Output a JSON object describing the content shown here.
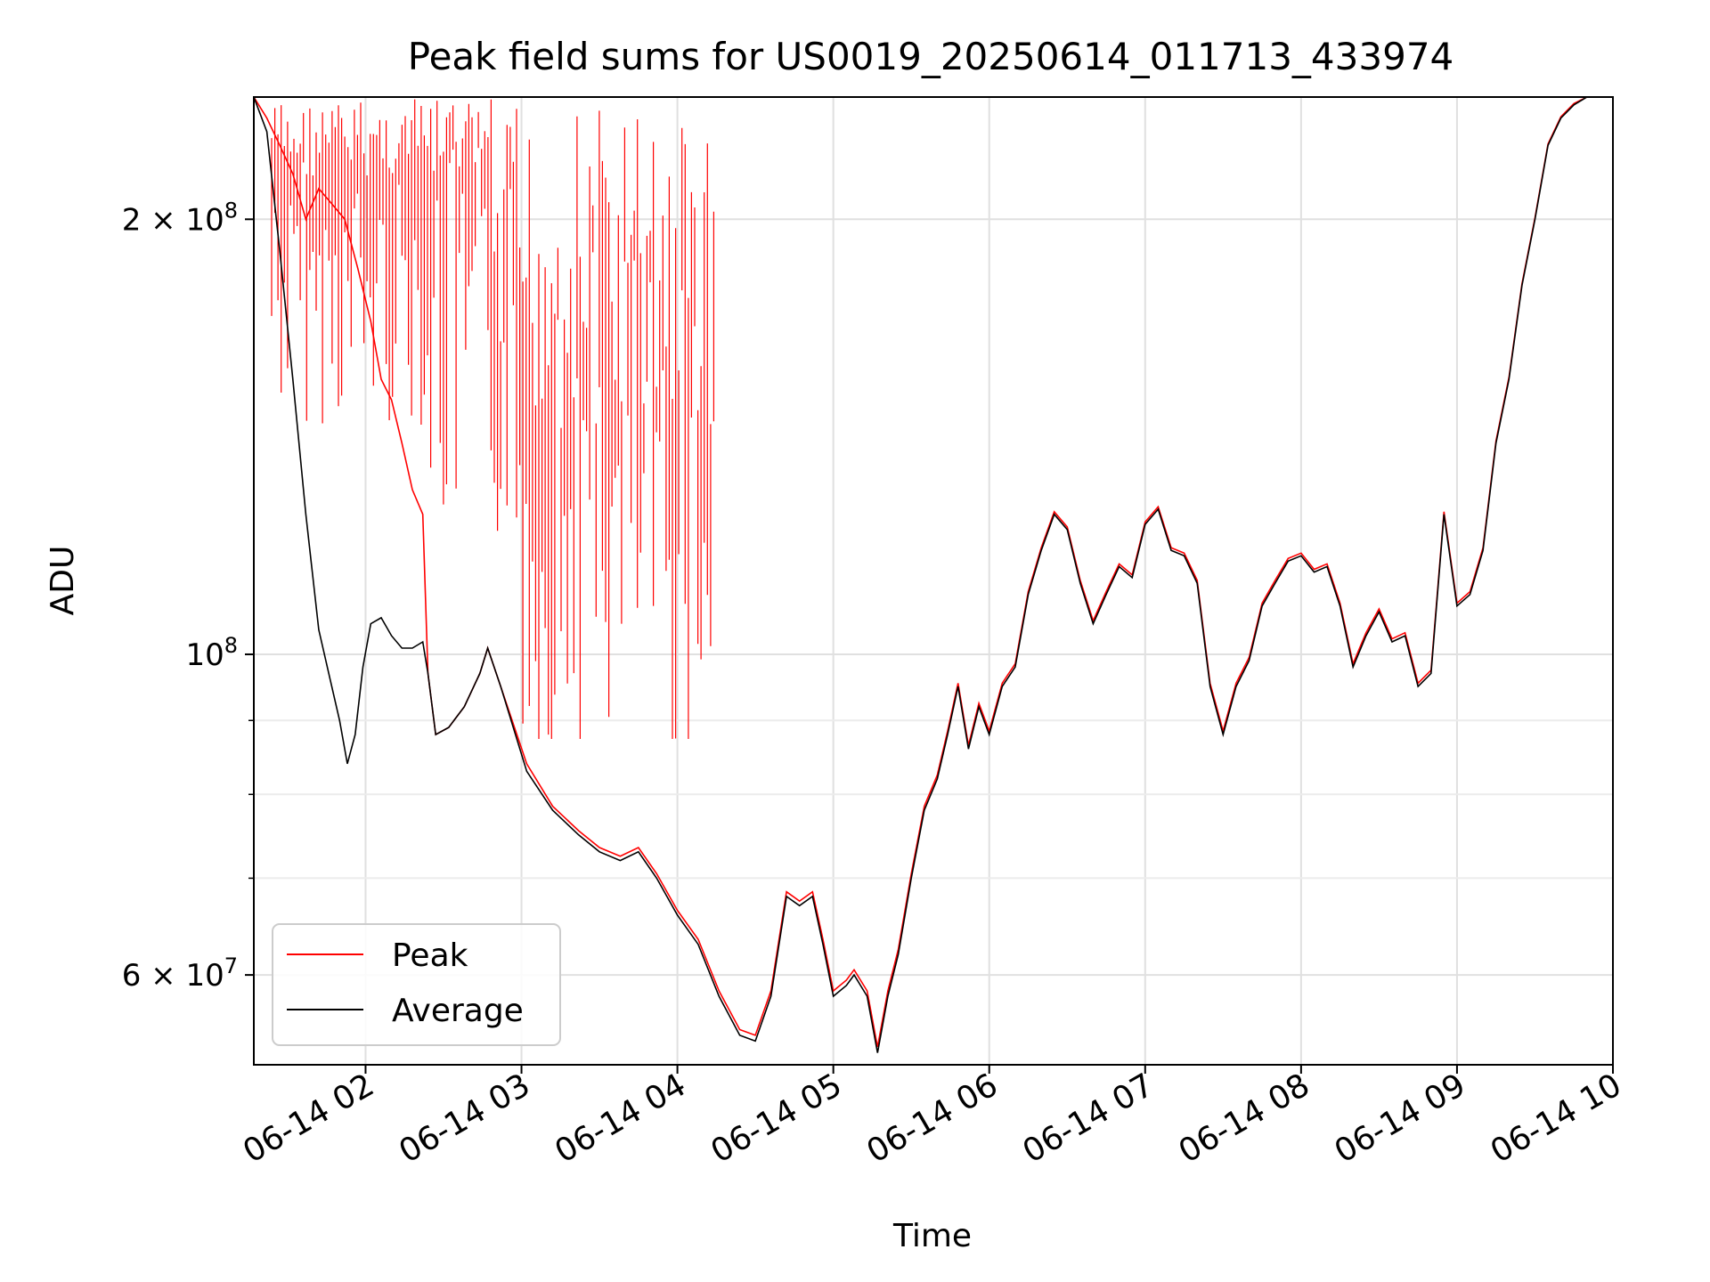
{
  "chart_data": {
    "type": "line",
    "title": "Peak field sums for US0019_20250614_011713_433974",
    "xlabel": "Time",
    "ylabel": "ADU",
    "x_scale": "time",
    "y_scale": "log",
    "xlim": [
      "2025-06-14 01:17",
      "2025-06-14 10:00"
    ],
    "ylim": [
      52000000,
      243000000
    ],
    "x_ticks": [
      "06-14 02",
      "06-14 03",
      "06-14 04",
      "06-14 05",
      "06-14 06",
      "06-14 07",
      "06-14 08",
      "06-14 09",
      "06-14 10"
    ],
    "y_major_ticks": [
      {
        "value": 100000000,
        "mantissa": "",
        "base": "10",
        "exponent": "8"
      },
      {
        "value": 200000000,
        "mantissa": "2",
        "base": "10",
        "exponent": "8"
      },
      {
        "value": 60000000,
        "mantissa": "6",
        "base": "10",
        "exponent": "7"
      }
    ],
    "y_minor_ticks": [
      70000000,
      80000000,
      90000000
    ],
    "grid": true,
    "legend_position": "lower-left",
    "series": [
      {
        "name": "Average",
        "color": "#000000",
        "x": [
          "2025-06-14 01:17",
          "2025-06-14 01:22",
          "2025-06-14 01:27",
          "2025-06-14 01:32",
          "2025-06-14 01:37",
          "2025-06-14 01:42",
          "2025-06-14 01:47",
          "2025-06-14 01:50",
          "2025-06-14 01:53",
          "2025-06-14 01:56",
          "2025-06-14 01:59",
          "2025-06-14 02:02",
          "2025-06-14 02:06",
          "2025-06-14 02:10",
          "2025-06-14 02:14",
          "2025-06-14 02:18",
          "2025-06-14 02:22",
          "2025-06-14 02:24",
          "2025-06-14 02:27",
          "2025-06-14 02:32",
          "2025-06-14 02:38",
          "2025-06-14 02:44",
          "2025-06-14 02:47",
          "2025-06-14 02:52",
          "2025-06-14 03:02",
          "2025-06-14 03:12",
          "2025-06-14 03:22",
          "2025-06-14 03:30",
          "2025-06-14 03:38",
          "2025-06-14 03:45",
          "2025-06-14 03:52",
          "2025-06-14 04:00",
          "2025-06-14 04:08",
          "2025-06-14 04:16",
          "2025-06-14 04:24",
          "2025-06-14 04:30",
          "2025-06-14 04:36",
          "2025-06-14 04:42",
          "2025-06-14 04:47",
          "2025-06-14 04:52",
          "2025-06-14 04:56",
          "2025-06-14 05:00",
          "2025-06-14 05:05",
          "2025-06-14 05:08",
          "2025-06-14 05:13",
          "2025-06-14 05:17",
          "2025-06-14 05:21",
          "2025-06-14 05:25",
          "2025-06-14 05:30",
          "2025-06-14 05:35",
          "2025-06-14 05:40",
          "2025-06-14 05:44",
          "2025-06-14 05:48",
          "2025-06-14 05:52",
          "2025-06-14 05:56",
          "2025-06-14 06:00",
          "2025-06-14 06:05",
          "2025-06-14 06:10",
          "2025-06-14 06:15",
          "2025-06-14 06:20",
          "2025-06-14 06:25",
          "2025-06-14 06:30",
          "2025-06-14 06:35",
          "2025-06-14 06:40",
          "2025-06-14 06:45",
          "2025-06-14 06:50",
          "2025-06-14 06:55",
          "2025-06-14 07:00",
          "2025-06-14 07:05",
          "2025-06-14 07:10",
          "2025-06-14 07:15",
          "2025-06-14 07:20",
          "2025-06-14 07:25",
          "2025-06-14 07:30",
          "2025-06-14 07:35",
          "2025-06-14 07:40",
          "2025-06-14 07:45",
          "2025-06-14 07:50",
          "2025-06-14 07:55",
          "2025-06-14 08:00",
          "2025-06-14 08:05",
          "2025-06-14 08:10",
          "2025-06-14 08:15",
          "2025-06-14 08:20",
          "2025-06-14 08:25",
          "2025-06-14 08:30",
          "2025-06-14 08:35",
          "2025-06-14 08:40",
          "2025-06-14 08:45",
          "2025-06-14 08:50",
          "2025-06-14 08:55",
          "2025-06-14 09:00",
          "2025-06-14 09:05",
          "2025-06-14 09:10",
          "2025-06-14 09:15",
          "2025-06-14 09:20",
          "2025-06-14 09:25",
          "2025-06-14 09:30",
          "2025-06-14 09:35",
          "2025-06-14 09:40",
          "2025-06-14 09:45",
          "2025-06-14 09:50",
          "2025-06-14 09:55",
          "2025-06-14 10:00"
        ],
        "y": [
          243000000,
          230000000,
          190000000,
          155000000,
          125000000,
          104000000,
          95000000,
          90000000,
          84000000,
          88000000,
          98000000,
          105000000,
          106000000,
          103000000,
          101000000,
          101000000,
          102000000,
          97000000,
          88000000,
          89000000,
          92000000,
          97000000,
          101000000,
          95000000,
          83000000,
          78000000,
          75000000,
          73000000,
          72000000,
          73000000,
          70000000,
          66000000,
          63000000,
          58000000,
          54500000,
          54000000,
          58000000,
          68000000,
          67000000,
          68000000,
          63000000,
          58000000,
          59000000,
          60000000,
          58000000,
          53000000,
          58000000,
          62000000,
          70000000,
          78000000,
          82000000,
          88000000,
          95000000,
          86000000,
          92000000,
          88000000,
          95000000,
          98000000,
          110000000,
          118000000,
          125000000,
          122000000,
          112000000,
          105000000,
          110000000,
          115000000,
          113000000,
          123000000,
          126000000,
          118000000,
          117000000,
          112000000,
          95000000,
          88000000,
          95000000,
          99000000,
          108000000,
          112000000,
          116000000,
          117000000,
          114000000,
          115000000,
          108000000,
          98000000,
          103000000,
          107000000,
          102000000,
          103000000,
          95000000,
          97000000,
          125000000,
          108000000,
          110000000,
          118000000,
          140000000,
          155000000,
          180000000,
          200000000,
          225000000,
          235000000,
          240000000,
          243000000,
          243000000,
          243000000
        ]
      },
      {
        "name": "Peak",
        "color": "#ff0000",
        "note_free": true,
        "x": [
          "2025-06-14 01:17",
          "2025-06-14 01:22",
          "2025-06-14 01:27",
          "2025-06-14 01:32",
          "2025-06-14 01:37",
          "2025-06-14 01:42",
          "2025-06-14 01:47",
          "2025-06-14 01:52",
          "2025-06-14 01:57",
          "2025-06-14 02:02",
          "2025-06-14 02:06",
          "2025-06-14 02:10",
          "2025-06-14 02:14",
          "2025-06-14 02:18",
          "2025-06-14 02:22",
          "2025-06-14 02:24",
          "2025-06-14 02:27",
          "2025-06-14 02:32",
          "2025-06-14 02:38",
          "2025-06-14 02:44",
          "2025-06-14 02:47",
          "2025-06-14 02:52",
          "2025-06-14 03:02",
          "2025-06-14 03:12",
          "2025-06-14 03:22",
          "2025-06-14 03:30",
          "2025-06-14 03:38",
          "2025-06-14 03:45",
          "2025-06-14 03:52",
          "2025-06-14 04:00",
          "2025-06-14 04:08",
          "2025-06-14 04:16",
          "2025-06-14 04:24",
          "2025-06-14 04:30",
          "2025-06-14 04:36",
          "2025-06-14 04:42",
          "2025-06-14 04:47",
          "2025-06-14 04:52",
          "2025-06-14 04:56",
          "2025-06-14 05:00",
          "2025-06-14 05:05",
          "2025-06-14 05:08",
          "2025-06-14 05:13",
          "2025-06-14 05:17",
          "2025-06-14 05:21",
          "2025-06-14 05:25",
          "2025-06-14 05:30",
          "2025-06-14 05:35",
          "2025-06-14 05:40",
          "2025-06-14 05:44",
          "2025-06-14 05:48",
          "2025-06-14 05:52",
          "2025-06-14 05:56",
          "2025-06-14 06:00",
          "2025-06-14 06:05",
          "2025-06-14 06:10",
          "2025-06-14 06:15",
          "2025-06-14 06:20",
          "2025-06-14 06:25",
          "2025-06-14 06:30",
          "2025-06-14 06:35",
          "2025-06-14 06:40",
          "2025-06-14 06:45",
          "2025-06-14 06:50",
          "2025-06-14 06:55",
          "2025-06-14 07:00",
          "2025-06-14 07:05",
          "2025-06-14 07:10",
          "2025-06-14 07:15",
          "2025-06-14 07:20",
          "2025-06-14 07:25",
          "2025-06-14 07:30",
          "2025-06-14 07:35",
          "2025-06-14 07:40",
          "2025-06-14 07:45",
          "2025-06-14 07:50",
          "2025-06-14 07:55",
          "2025-06-14 08:00",
          "2025-06-14 08:05",
          "2025-06-14 08:10",
          "2025-06-14 08:15",
          "2025-06-14 08:20",
          "2025-06-14 08:25",
          "2025-06-14 08:30",
          "2025-06-14 08:35",
          "2025-06-14 08:40",
          "2025-06-14 08:45",
          "2025-06-14 08:50",
          "2025-06-14 08:55",
          "2025-06-14 09:00",
          "2025-06-14 09:05",
          "2025-06-14 09:10",
          "2025-06-14 09:15",
          "2025-06-14 09:20",
          "2025-06-14 09:25",
          "2025-06-14 09:30",
          "2025-06-14 09:35",
          "2025-06-14 09:40",
          "2025-06-14 09:45",
          "2025-06-14 09:50",
          "2025-06-14 09:55",
          "2025-06-14 10:00"
        ],
        "y": [
          243000000,
          235000000,
          225000000,
          215000000,
          200000000,
          210000000,
          205000000,
          200000000,
          185000000,
          170000000,
          155000000,
          150000000,
          140000000,
          130000000,
          125000000,
          97000000,
          88000000,
          89000000,
          92000000,
          97000000,
          101000000,
          95000000,
          84000000,
          78500000,
          75500000,
          73500000,
          72500000,
          73500000,
          70500000,
          66500000,
          63500000,
          58500000,
          55000000,
          54500000,
          58500000,
          68500000,
          67500000,
          68500000,
          63500000,
          58500000,
          59500000,
          60500000,
          58500000,
          53500000,
          58500000,
          62500000,
          70500000,
          78500000,
          82500000,
          88500000,
          95500000,
          86500000,
          92500000,
          88500000,
          95500000,
          98500000,
          110500000,
          118500000,
          125500000,
          122500000,
          112500000,
          105500000,
          110500000,
          115500000,
          113500000,
          123500000,
          126500000,
          118500000,
          117500000,
          112500000,
          95500000,
          88500000,
          95500000,
          99500000,
          108500000,
          112500000,
          116500000,
          117500000,
          114500000,
          115500000,
          108500000,
          98500000,
          103500000,
          107500000,
          102500000,
          103500000,
          95500000,
          97500000,
          125500000,
          108500000,
          110500000,
          118500000,
          140500000,
          155500000,
          180500000,
          200500000,
          225500000,
          235500000,
          240500000,
          243000000,
          243000000,
          243000000
        ]
      }
    ],
    "legend": [
      {
        "label": "Peak",
        "color": "#ff0000"
      },
      {
        "label": "Average",
        "color": "#000000"
      }
    ]
  }
}
